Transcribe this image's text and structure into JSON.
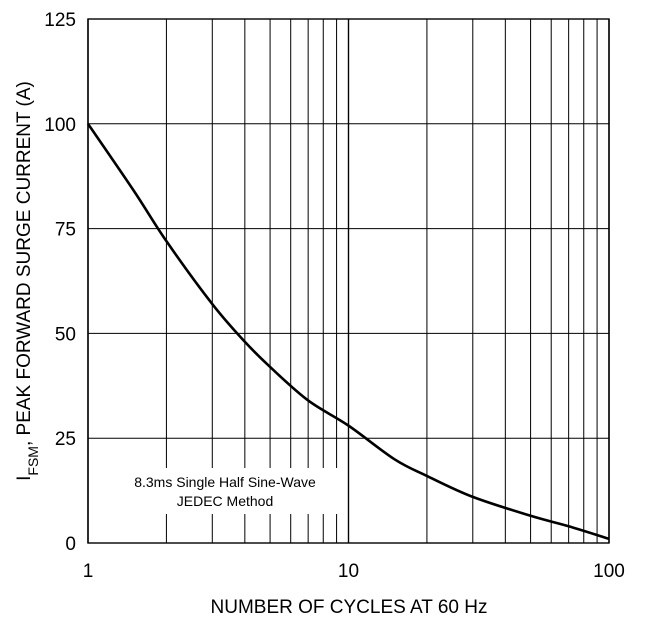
{
  "chart_data": {
    "type": "line",
    "x_scale": "log",
    "xlim": [
      1,
      100
    ],
    "ylim": [
      0,
      125
    ],
    "grid": true,
    "x_ticks": [
      1,
      10,
      100
    ],
    "x_tick_labels": [
      "1",
      "10",
      "100"
    ],
    "y_ticks": [
      0,
      25,
      50,
      75,
      100,
      125
    ],
    "y_tick_labels": [
      "0",
      "25",
      "50",
      "75",
      "100",
      "125"
    ],
    "xlabel": "NUMBER OF CYCLES AT 60 Hz",
    "ylabel": {
      "symbol": "I",
      "subscript": "FSM",
      "text": ", PEAK FORWARD SURGE CURRENT (A)"
    },
    "annotation": [
      "8.3ms Single Half Sine-Wave",
      "JEDEC Method"
    ],
    "series": [
      {
        "x": [
          1,
          1.5,
          2,
          3,
          4,
          5,
          7,
          10,
          15,
          20,
          30,
          50,
          70,
          100
        ],
        "y": [
          100,
          84,
          72,
          57,
          48,
          42,
          34,
          28,
          20,
          16,
          11,
          6.5,
          4,
          1
        ]
      }
    ]
  }
}
